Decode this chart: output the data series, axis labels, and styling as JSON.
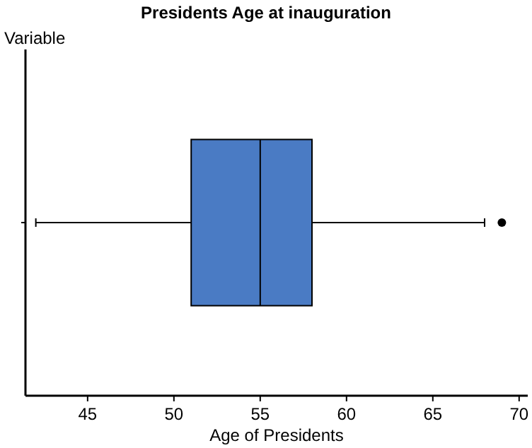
{
  "chart_data": {
    "type": "box",
    "title": "Presidents Age at inauguration",
    "xlabel": "Age of Presidents",
    "ylabel": "Variable",
    "orientation": "horizontal",
    "categories": [
      null
    ],
    "color": "#4a7bc4",
    "boxes": [
      {
        "low": 42,
        "q1": 51,
        "median": 55,
        "q3": 58,
        "high": 68,
        "outliers": [
          69
        ]
      }
    ],
    "xlim": [
      41.4,
      70.5
    ],
    "xticks": [
      45,
      50,
      55,
      60,
      65,
      70
    ],
    "grid": false
  }
}
